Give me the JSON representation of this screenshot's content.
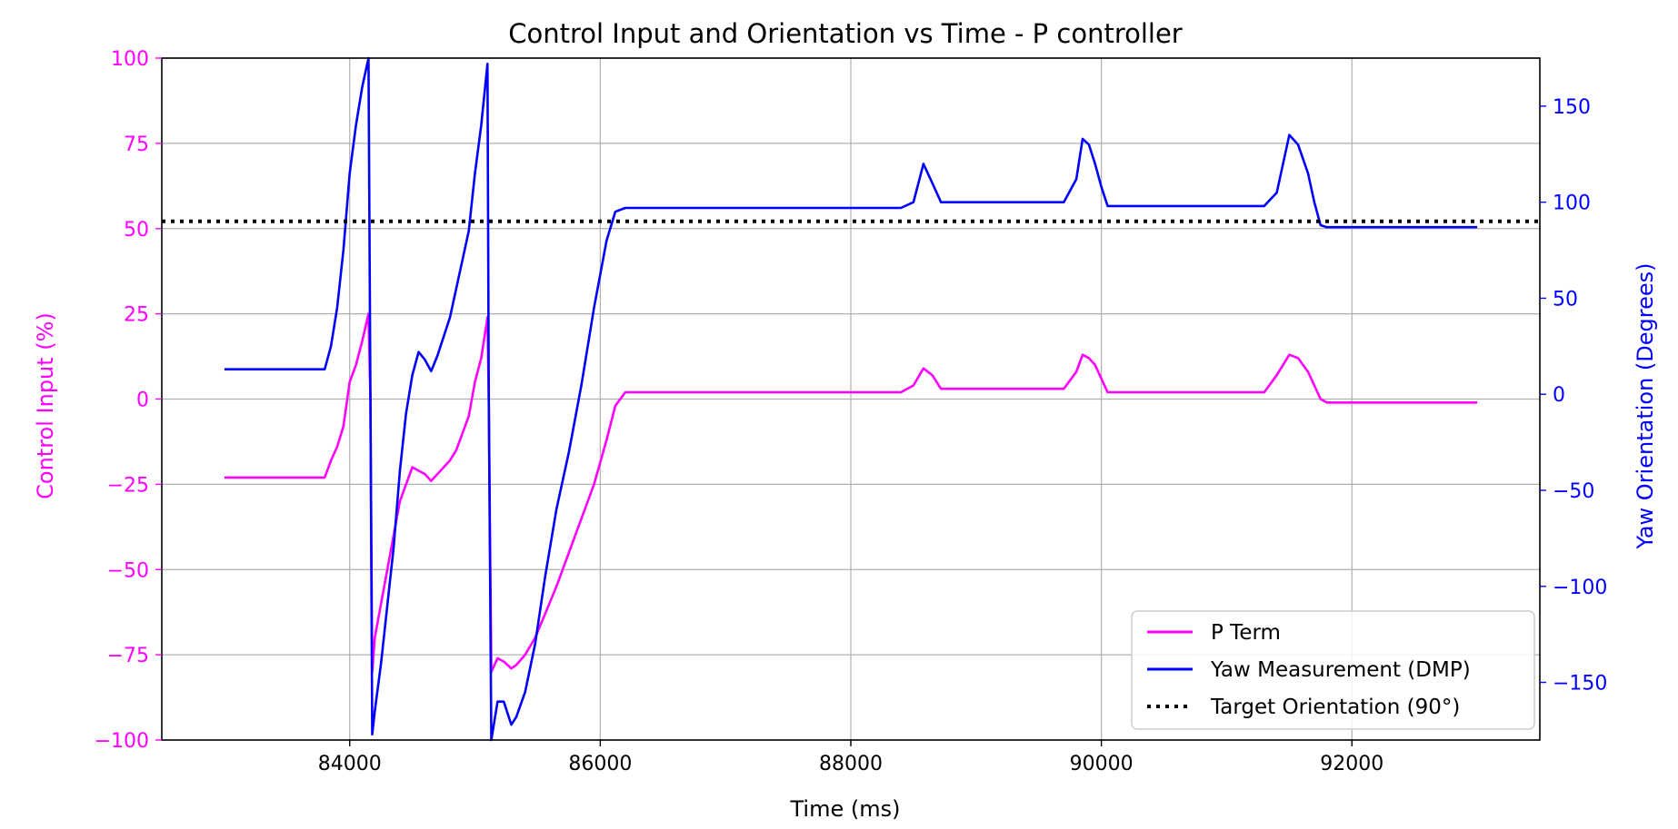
{
  "chart_data": {
    "type": "line",
    "title": "Control Input and Orientation vs Time - P controller",
    "xlabel": "Time (ms)",
    "ylabel_left": "Control Input (%)",
    "ylabel_right": "Yaw Orientation (Degrees)",
    "xlim": [
      82500,
      93500
    ],
    "ylim_left": [
      -100,
      100
    ],
    "ylim_right": [
      -180,
      175
    ],
    "x_ticks": [
      84000,
      86000,
      88000,
      90000,
      92000
    ],
    "x_tick_labels": [
      "84000",
      "86000",
      "88000",
      "90000",
      "92000"
    ],
    "y_left_ticks": [
      -100,
      -75,
      -50,
      -25,
      0,
      25,
      50,
      75,
      100
    ],
    "y_left_tick_labels": [
      "−100",
      "−75",
      "−50",
      "−25",
      "0",
      "25",
      "50",
      "75",
      "100"
    ],
    "y_right_ticks": [
      -150,
      -100,
      -50,
      0,
      50,
      100,
      150
    ],
    "y_right_tick_labels": [
      "−150",
      "−100",
      "−50",
      "0",
      "50",
      "100",
      "150"
    ],
    "grid": true,
    "legend_position": "lower-right",
    "colors": {
      "p_term": "#ff00ff",
      "yaw": "#0000ff",
      "target": "#000000",
      "left_axis": "#ff00ff",
      "right_axis": "#0000ff"
    },
    "series": [
      {
        "name": "P Term",
        "axis": "left",
        "color": "#ff00ff",
        "style": "solid",
        "x": [
          83000,
          83800,
          83850,
          83900,
          83950,
          84000,
          84050,
          84100,
          84150,
          84165,
          84180,
          84200,
          84250,
          84300,
          84350,
          84400,
          84450,
          84500,
          84550,
          84600,
          84650,
          84700,
          84750,
          84800,
          84850,
          84900,
          84950,
          85000,
          85050,
          85100,
          85110,
          85130,
          85180,
          85230,
          85290,
          85330,
          85400,
          85480,
          85560,
          85650,
          85750,
          85850,
          85950,
          86050,
          86120,
          86200,
          88400,
          88500,
          88580,
          88650,
          88720,
          89700,
          89800,
          89850,
          89900,
          89950,
          90000,
          90050,
          91300,
          91400,
          91500,
          91570,
          91650,
          91700,
          91750,
          91800,
          93000
        ],
        "values": [
          -23,
          -23,
          -18,
          -14,
          -8,
          5,
          10,
          17,
          25,
          0,
          -80,
          -70,
          -60,
          -50,
          -40,
          -30,
          -25,
          -20,
          -21,
          -22,
          -24,
          -22,
          -20,
          -18,
          -15,
          -10,
          -5,
          5,
          12,
          24,
          0,
          -80,
          -76,
          -77,
          -79,
          -78,
          -75,
          -70,
          -63,
          -55,
          -45,
          -35,
          -25,
          -12,
          -2,
          2,
          2,
          4,
          9,
          7,
          3,
          3,
          8,
          13,
          12,
          10,
          6,
          2,
          2,
          7,
          13,
          12,
          8,
          4,
          0,
          -1,
          -1
        ]
      },
      {
        "name": "Yaw Measurement (DMP)",
        "axis": "right",
        "color": "#0000ff",
        "style": "solid",
        "x": [
          83000,
          83800,
          83850,
          83900,
          83950,
          84000,
          84050,
          84100,
          84150,
          84165,
          84180,
          84200,
          84250,
          84300,
          84350,
          84400,
          84450,
          84500,
          84550,
          84600,
          84650,
          84700,
          84750,
          84800,
          84850,
          84900,
          84950,
          85000,
          85050,
          85100,
          85110,
          85130,
          85180,
          85230,
          85290,
          85330,
          85400,
          85480,
          85560,
          85650,
          85750,
          85850,
          85950,
          86050,
          86120,
          86200,
          88400,
          88500,
          88580,
          88650,
          88720,
          89700,
          89800,
          89850,
          89900,
          89950,
          90000,
          90050,
          91300,
          91400,
          91500,
          91570,
          91650,
          91700,
          91750,
          91800,
          93000
        ],
        "values": [
          13,
          13,
          25,
          45,
          75,
          115,
          140,
          160,
          175,
          0,
          -177,
          -165,
          -140,
          -110,
          -80,
          -40,
          -10,
          10,
          22,
          18,
          12,
          20,
          30,
          40,
          55,
          70,
          85,
          115,
          140,
          172,
          0,
          -180,
          -160,
          -160,
          -172,
          -168,
          -155,
          -130,
          -95,
          -60,
          -30,
          5,
          45,
          80,
          95,
          97,
          97,
          100,
          120,
          110,
          100,
          100,
          112,
          133,
          130,
          120,
          108,
          98,
          98,
          105,
          135,
          130,
          115,
          100,
          88,
          87,
          87
        ]
      },
      {
        "name": "Target Orientation (90°)",
        "axis": "right",
        "color": "#000000",
        "style": "dotted",
        "x": [
          82500,
          93500
        ],
        "values": [
          90,
          90
        ]
      }
    ]
  }
}
